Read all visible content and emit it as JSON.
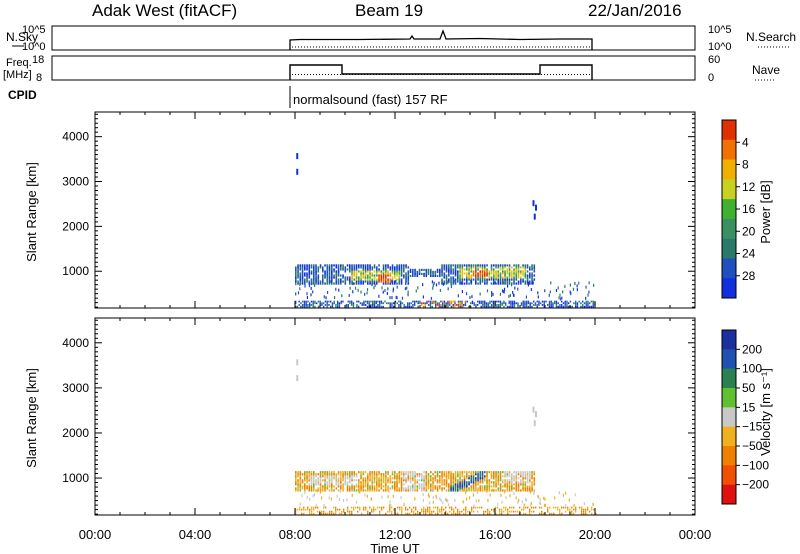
{
  "header": {
    "station": "Adak West (fitACF)",
    "beam": "Beam 19",
    "date": "22/Jan/2016"
  },
  "summary_panels": {
    "nsky_label": "N.Sky",
    "nsearch_label": "N.Search",
    "freq_label_line1": "Freq.",
    "freq_label_line2": "[MHz]",
    "nave_label": "Nave",
    "cpid_label": "CPID",
    "cpid_text": "normalsound (fast) 157 RF",
    "nsky_ticks": [
      "10^5",
      "10^0"
    ],
    "nsearch_ticks": [
      "10^5",
      "10^0"
    ],
    "freq_ticks": [
      "18",
      "8"
    ],
    "nave_ticks": [
      "60",
      "0"
    ]
  },
  "colors": {
    "axis": "#000000",
    "power_scale": [
      "#1030e0",
      "#2050c0",
      "#2a7a6a",
      "#3a9060",
      "#40b030",
      "#c8d020",
      "#f0b000",
      "#f07000",
      "#e03000"
    ],
    "velocity_scale": [
      "#e01010",
      "#f05000",
      "#f08000",
      "#f0b020",
      "#c8c8c8",
      "#60c030",
      "#2a8050",
      "#2050b0",
      "#1a30a0"
    ]
  },
  "chart_data": [
    {
      "type": "heatmap",
      "name": "power",
      "ylabel": "Slant Range [km]",
      "xlabel": "Time UT",
      "xticks": [
        "00:00",
        "04:00",
        "08:00",
        "12:00",
        "16:00",
        "20:00",
        "00:00"
      ],
      "yticks": [
        "1000",
        "2000",
        "3000",
        "4000"
      ],
      "ylim": [
        180,
        4550
      ],
      "xlim_hours": [
        0,
        24
      ],
      "colorbar_label": "Power [dB]",
      "colorbar_ticks": [
        "4",
        "8",
        "12",
        "16",
        "20",
        "24",
        "28"
      ],
      "data_window_hours": [
        8,
        20
      ],
      "echo_band_km": [
        700,
        1150
      ],
      "ground_band_km": [
        180,
        350
      ]
    },
    {
      "type": "heatmap",
      "name": "velocity",
      "ylabel": "Slant Range [km]",
      "xlabel": "Time UT",
      "xticks": [
        "00:00",
        "04:00",
        "08:00",
        "12:00",
        "16:00",
        "20:00",
        "00:00"
      ],
      "yticks": [
        "1000",
        "2000",
        "3000",
        "4000"
      ],
      "ylim": [
        180,
        4550
      ],
      "colorbar_label": "Velocity [m s⁻¹]",
      "colorbar_ticks": [
        "200",
        "100",
        "50",
        "15",
        "−15",
        "−50",
        "−100",
        "−200"
      ],
      "data_window_hours": [
        8,
        20
      ]
    }
  ]
}
